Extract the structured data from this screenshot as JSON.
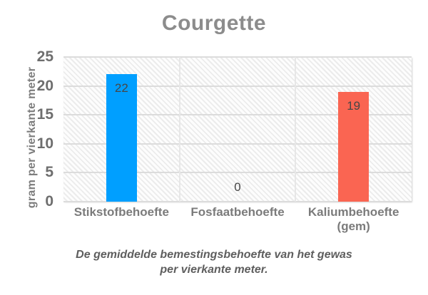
{
  "caption": {
    "line1": "De gemiddelde bemestingsbehoefte van het gewas",
    "line2": "per vierkante meter."
  },
  "colors": {
    "title_text": "#8C8C8C",
    "tick_text": "#6E6E6E",
    "xlabel_text": "#7B7B7B",
    "value_text": "#464646",
    "caption_text": "#5E5E5E",
    "gridline": "#DCDCDC",
    "bar_blue": "#009FFF",
    "bar_red": "#FA6552"
  },
  "chart_data": {
    "type": "bar",
    "title": "Courgette",
    "categories": [
      "Stikstofbehoefte",
      "Fosfaatbehoefte",
      "Kaliumbehoefte (gem)"
    ],
    "category_lines": [
      [
        "Stikstofbehoefte"
      ],
      [
        "Fosfaatbehoefte"
      ],
      [
        "Kaliumbehoefte",
        "(gem)"
      ]
    ],
    "values": [
      22,
      0,
      19
    ],
    "value_labels": [
      "22",
      "0",
      "19"
    ],
    "bar_colors": [
      "#009FFF",
      null,
      "#FA6552"
    ],
    "xlabel": "",
    "ylabel": "gram per vierkante meter",
    "ylim": [
      0,
      25
    ],
    "yticks": [
      0,
      5,
      10,
      15,
      20,
      25
    ],
    "grid": true,
    "legend": false
  }
}
